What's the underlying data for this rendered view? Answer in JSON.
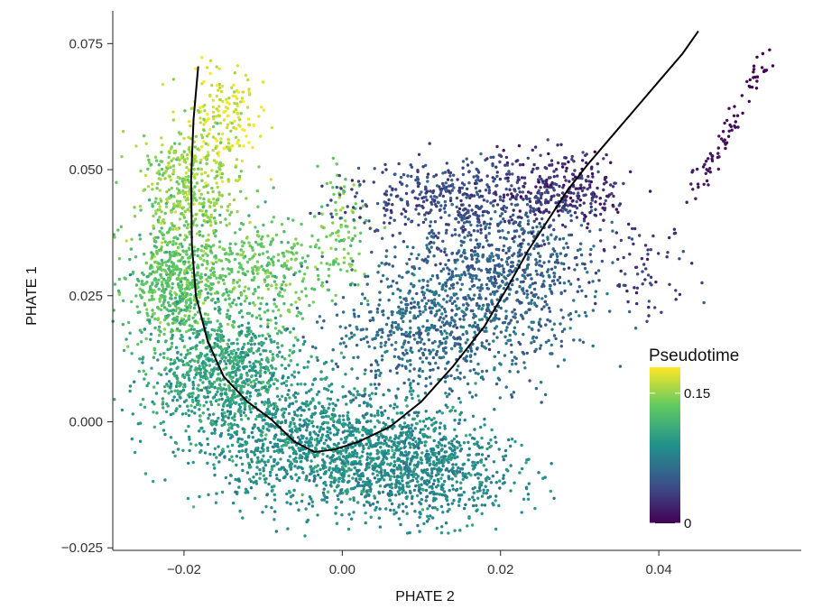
{
  "chart_data": {
    "type": "scatter",
    "title": "",
    "xlabel": "PHATE 2",
    "ylabel": "PHATE 1",
    "xlim": [
      -0.029,
      0.058
    ],
    "ylim": [
      -0.0255,
      0.0815
    ],
    "x_ticks": [
      -0.02,
      0.0,
      0.02,
      0.04
    ],
    "x_tick_labels": [
      "−0.02",
      "0.00",
      "0.02",
      "0.04"
    ],
    "y_ticks": [
      -0.025,
      0.0,
      0.025,
      0.05,
      0.075
    ],
    "y_tick_labels": [
      "−0.025",
      "0.000",
      "0.025",
      "0.050",
      "0.075"
    ],
    "grid": false,
    "color_scale": {
      "name": "Pseudotime",
      "palette": "viridis",
      "range": [
        0,
        0.18
      ],
      "ticks": [
        0,
        0.15
      ],
      "tick_labels": [
        "0",
        "0.15"
      ],
      "colors": [
        "#440154",
        "#3b528b",
        "#21918c",
        "#5ec962",
        "#fde725"
      ],
      "placement": "right-center"
    },
    "trajectory": {
      "name": "Pseudotime trajectory",
      "x": [
        -0.0182,
        -0.0188,
        -0.0191,
        -0.019,
        -0.0185,
        -0.017,
        -0.015,
        -0.012,
        -0.009,
        -0.006,
        -0.0035,
        -0.001,
        0.002,
        0.006,
        0.01,
        0.014,
        0.018,
        0.021,
        0.0235,
        0.026,
        0.0285,
        0.031,
        0.034,
        0.037,
        0.04,
        0.043,
        0.045
      ],
      "y": [
        0.0705,
        0.06,
        0.048,
        0.035,
        0.025,
        0.016,
        0.009,
        0.004,
        0.0005,
        -0.004,
        -0.006,
        -0.0055,
        -0.004,
        -0.001,
        0.004,
        0.011,
        0.019,
        0.027,
        0.034,
        0.04,
        0.046,
        0.051,
        0.0565,
        0.062,
        0.0675,
        0.073,
        0.0775
      ]
    },
    "point_clusters": [
      {
        "name": "left-arm-top",
        "x": -0.015,
        "y": 0.06,
        "sx": 0.0022,
        "sy": 0.006,
        "n": 180,
        "pseudotime": 0.17
      },
      {
        "name": "left-arm-mid",
        "x": -0.02,
        "y": 0.045,
        "sx": 0.003,
        "sy": 0.007,
        "n": 420,
        "pseudotime": 0.15
      },
      {
        "name": "left-arm-low",
        "x": -0.021,
        "y": 0.027,
        "sx": 0.003,
        "sy": 0.006,
        "n": 600,
        "pseudotime": 0.13
      },
      {
        "name": "left-inner",
        "x": -0.01,
        "y": 0.03,
        "sx": 0.004,
        "sy": 0.006,
        "n": 320,
        "pseudotime": 0.135
      },
      {
        "name": "green-spur",
        "x": 0.0,
        "y": 0.038,
        "sx": 0.0015,
        "sy": 0.006,
        "n": 90,
        "pseudotime": 0.14
      },
      {
        "name": "left-base",
        "x": -0.015,
        "y": 0.01,
        "sx": 0.005,
        "sy": 0.006,
        "n": 900,
        "pseudotime": 0.105
      },
      {
        "name": "center-bottom",
        "x": -0.002,
        "y": -0.005,
        "sx": 0.008,
        "sy": 0.006,
        "n": 1300,
        "pseudotime": 0.09
      },
      {
        "name": "right-bottom",
        "x": 0.01,
        "y": -0.01,
        "sx": 0.006,
        "sy": 0.005,
        "n": 700,
        "pseudotime": 0.085
      },
      {
        "name": "right-middle",
        "x": 0.012,
        "y": 0.018,
        "sx": 0.007,
        "sy": 0.007,
        "n": 700,
        "pseudotime": 0.065
      },
      {
        "name": "right-cloud",
        "x": 0.02,
        "y": 0.03,
        "sx": 0.006,
        "sy": 0.007,
        "n": 650,
        "pseudotime": 0.055
      },
      {
        "name": "top-cloud",
        "x": 0.015,
        "y": 0.044,
        "sx": 0.007,
        "sy": 0.004,
        "n": 450,
        "pseudotime": 0.04
      },
      {
        "name": "top-right",
        "x": 0.028,
        "y": 0.046,
        "sx": 0.004,
        "sy": 0.004,
        "n": 280,
        "pseudotime": 0.025
      },
      {
        "name": "right-tail",
        "x": 0.038,
        "y": 0.03,
        "sx": 0.003,
        "sy": 0.004,
        "n": 70,
        "pseudotime": 0.03
      }
    ],
    "arm_segment": {
      "name": "far-right arm",
      "from": [
        0.044,
        0.043
      ],
      "to": [
        0.0535,
        0.073
      ],
      "n": 80,
      "pseudotime_range": [
        0.015,
        0.0
      ]
    }
  }
}
